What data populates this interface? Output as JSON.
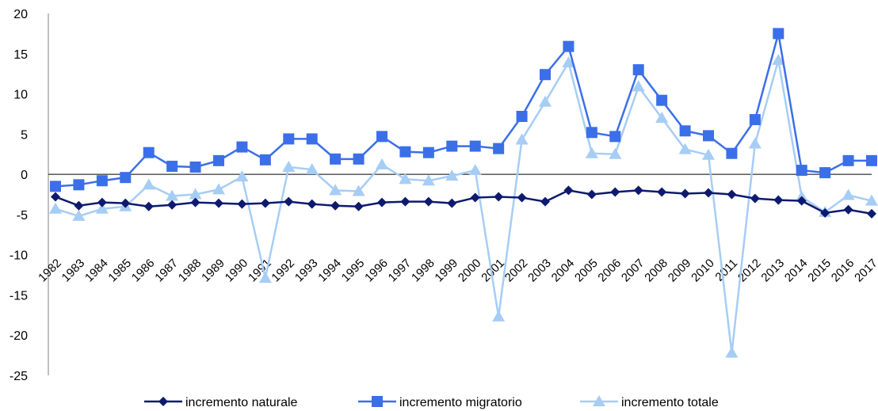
{
  "chart_data": {
    "type": "line",
    "title": "",
    "xlabel": "",
    "ylabel": "",
    "ylim": [
      -25,
      20
    ],
    "yticks": [
      20,
      15,
      10,
      5,
      0,
      -5,
      -10,
      -15,
      -20,
      -25
    ],
    "categories": [
      "1982",
      "1983",
      "1984",
      "1985",
      "1986",
      "1987",
      "1988",
      "1989",
      "1990",
      "1991",
      "1992",
      "1993",
      "1994",
      "1995",
      "1996",
      "1997",
      "1998",
      "1999",
      "2000",
      "2001",
      "2002",
      "2003",
      "2004",
      "2005",
      "2006",
      "2007",
      "2008",
      "2009",
      "2010",
      "2011",
      "2012",
      "2013",
      "2014",
      "2015",
      "2016",
      "2017"
    ],
    "grid": false,
    "legend_position": "bottom",
    "series": [
      {
        "name": "incremento naturale",
        "color": "#0d1a6e",
        "marker": "diamond",
        "values": [
          -2.8,
          -3.9,
          -3.5,
          -3.6,
          -4.0,
          -3.8,
          -3.5,
          -3.6,
          -3.7,
          -3.6,
          -3.4,
          -3.7,
          -3.9,
          -4.0,
          -3.5,
          -3.4,
          -3.4,
          -3.6,
          -2.9,
          -2.8,
          -2.9,
          -3.4,
          -2.0,
          -2.5,
          -2.2,
          -2.0,
          -2.2,
          -2.4,
          -2.3,
          -2.5,
          -3.0,
          -3.2,
          -3.3,
          -4.8,
          -4.4,
          -4.9
        ]
      },
      {
        "name": "incremento migratorio",
        "color": "#3b6fe8",
        "marker": "square",
        "values": [
          -1.5,
          -1.3,
          -0.8,
          -0.4,
          2.7,
          1.0,
          0.9,
          1.7,
          3.4,
          1.8,
          4.4,
          4.4,
          1.9,
          1.9,
          4.7,
          2.8,
          2.7,
          3.5,
          3.5,
          3.2,
          7.2,
          12.4,
          15.9,
          5.2,
          4.7,
          13.0,
          9.2,
          5.4,
          4.8,
          2.6,
          6.8,
          17.5,
          0.5,
          0.2,
          1.7,
          1.7
        ]
      },
      {
        "name": "incremento totale",
        "color": "#a6cdf5",
        "marker": "triangle",
        "values": [
          -4.3,
          -5.2,
          -4.3,
          -4.0,
          -1.3,
          -2.7,
          -2.5,
          -1.9,
          -0.3,
          -12.9,
          0.9,
          0.6,
          -2.0,
          -2.1,
          1.2,
          -0.6,
          -0.8,
          -0.2,
          0.5,
          -17.7,
          4.3,
          9.0,
          13.9,
          2.6,
          2.5,
          10.9,
          7.0,
          3.1,
          2.4,
          -22.2,
          3.8,
          14.2,
          -2.8,
          -4.7,
          -2.6,
          -3.3
        ]
      }
    ]
  }
}
